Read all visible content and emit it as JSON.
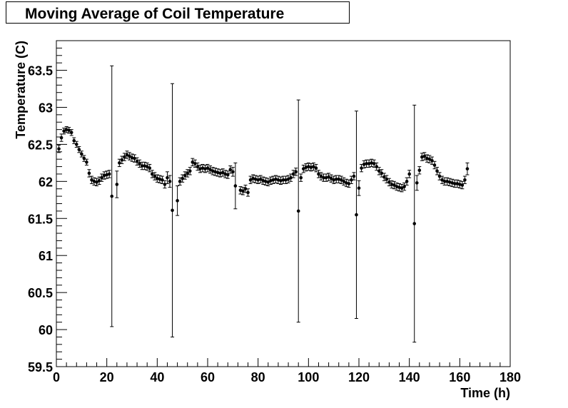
{
  "chart_data": {
    "type": "scatter",
    "title": "Moving Average of Coil Temperature",
    "xlabel": "Time (h)",
    "ylabel": "Temperature (C)",
    "xlim": [
      0,
      180
    ],
    "ylim": [
      59.5,
      63.9
    ],
    "x_ticks": [
      "0",
      "20",
      "40",
      "60",
      "80",
      "100",
      "120",
      "140",
      "160",
      "180"
    ],
    "y_ticks": [
      "59.5",
      "60",
      "60.5",
      "61",
      "61.5",
      "62",
      "62.5",
      "63",
      "63.5"
    ],
    "grid": false,
    "legend": "none",
    "marker_color": "#000000",
    "points": [
      [
        1,
        62.44,
        0.05
      ],
      [
        2,
        62.59,
        0.05
      ],
      [
        3,
        62.68,
        0.04
      ],
      [
        4,
        62.7,
        0.04
      ],
      [
        5,
        62.69,
        0.04
      ],
      [
        6,
        62.66,
        0.04
      ],
      [
        7,
        62.55,
        0.04
      ],
      [
        8,
        62.5,
        0.04
      ],
      [
        9,
        62.43,
        0.04
      ],
      [
        10,
        62.37,
        0.04
      ],
      [
        11,
        62.31,
        0.04
      ],
      [
        12,
        62.26,
        0.04
      ],
      [
        13,
        62.11,
        0.05
      ],
      [
        14,
        62.02,
        0.05
      ],
      [
        15,
        62.0,
        0.05
      ],
      [
        16,
        61.99,
        0.05
      ],
      [
        17,
        62.01,
        0.05
      ],
      [
        18,
        62.05,
        0.05
      ],
      [
        19,
        62.08,
        0.05
      ],
      [
        20,
        62.09,
        0.05
      ],
      [
        21,
        62.1,
        0.05
      ],
      [
        22,
        61.8,
        1.76
      ],
      [
        24,
        61.96,
        0.18
      ],
      [
        25,
        62.25,
        0.05
      ],
      [
        26,
        62.29,
        0.05
      ],
      [
        27,
        62.33,
        0.05
      ],
      [
        28,
        62.36,
        0.05
      ],
      [
        29,
        62.34,
        0.05
      ],
      [
        30,
        62.32,
        0.05
      ],
      [
        31,
        62.31,
        0.05
      ],
      [
        32,
        62.27,
        0.05
      ],
      [
        33,
        62.24,
        0.05
      ],
      [
        34,
        62.21,
        0.05
      ],
      [
        35,
        62.21,
        0.05
      ],
      [
        36,
        62.2,
        0.05
      ],
      [
        37,
        62.18,
        0.05
      ],
      [
        38,
        62.1,
        0.05
      ],
      [
        39,
        62.07,
        0.05
      ],
      [
        40,
        62.04,
        0.05
      ],
      [
        41,
        62.03,
        0.05
      ],
      [
        42,
        62.02,
        0.05
      ],
      [
        43,
        61.96,
        0.05
      ],
      [
        44,
        62.05,
        0.08
      ],
      [
        45,
        62.0,
        0.08
      ],
      [
        46,
        61.61,
        1.71
      ],
      [
        48,
        61.74,
        0.2
      ],
      [
        49,
        62.0,
        0.05
      ],
      [
        50,
        62.04,
        0.05
      ],
      [
        51,
        62.08,
        0.05
      ],
      [
        52,
        62.11,
        0.05
      ],
      [
        53,
        62.14,
        0.05
      ],
      [
        54,
        62.26,
        0.05
      ],
      [
        55,
        62.24,
        0.05
      ],
      [
        56,
        62.2,
        0.05
      ],
      [
        57,
        62.17,
        0.05
      ],
      [
        58,
        62.18,
        0.05
      ],
      [
        59,
        62.17,
        0.05
      ],
      [
        60,
        62.18,
        0.05
      ],
      [
        61,
        62.16,
        0.05
      ],
      [
        62,
        62.14,
        0.05
      ],
      [
        63,
        62.13,
        0.05
      ],
      [
        64,
        62.12,
        0.05
      ],
      [
        65,
        62.11,
        0.05
      ],
      [
        66,
        62.12,
        0.05
      ],
      [
        67,
        62.1,
        0.05
      ],
      [
        68,
        62.09,
        0.05
      ],
      [
        69,
        62.16,
        0.05
      ],
      [
        70,
        62.13,
        0.06
      ],
      [
        71,
        61.94,
        0.31
      ],
      [
        73,
        61.88,
        0.05
      ],
      [
        74,
        61.87,
        0.05
      ],
      [
        75,
        61.9,
        0.05
      ],
      [
        76,
        61.85,
        0.05
      ],
      [
        77,
        62.02,
        0.05
      ],
      [
        78,
        62.04,
        0.05
      ],
      [
        79,
        62.03,
        0.05
      ],
      [
        80,
        62.02,
        0.05
      ],
      [
        81,
        62.03,
        0.05
      ],
      [
        82,
        62.01,
        0.05
      ],
      [
        83,
        62.0,
        0.05
      ],
      [
        84,
        61.99,
        0.05
      ],
      [
        85,
        62.01,
        0.05
      ],
      [
        86,
        62.02,
        0.05
      ],
      [
        87,
        62.03,
        0.05
      ],
      [
        88,
        62.02,
        0.05
      ],
      [
        89,
        62.01,
        0.05
      ],
      [
        90,
        62.02,
        0.05
      ],
      [
        91,
        62.02,
        0.05
      ],
      [
        92,
        62.03,
        0.05
      ],
      [
        93,
        62.05,
        0.05
      ],
      [
        94,
        62.1,
        0.05
      ],
      [
        95,
        62.13,
        0.05
      ],
      [
        96,
        61.6,
        1.5
      ],
      [
        97,
        62.05,
        0.05
      ],
      [
        98,
        62.17,
        0.05
      ],
      [
        99,
        62.19,
        0.05
      ],
      [
        100,
        62.2,
        0.05
      ],
      [
        101,
        62.19,
        0.05
      ],
      [
        102,
        62.2,
        0.05
      ],
      [
        103,
        62.18,
        0.05
      ],
      [
        104,
        62.1,
        0.05
      ],
      [
        105,
        62.07,
        0.05
      ],
      [
        106,
        62.05,
        0.05
      ],
      [
        107,
        62.05,
        0.05
      ],
      [
        108,
        62.06,
        0.05
      ],
      [
        109,
        62.04,
        0.05
      ],
      [
        110,
        62.02,
        0.05
      ],
      [
        111,
        62.03,
        0.05
      ],
      [
        112,
        62.03,
        0.05
      ],
      [
        113,
        62.02,
        0.05
      ],
      [
        114,
        62.0,
        0.05
      ],
      [
        115,
        61.98,
        0.05
      ],
      [
        116,
        61.97,
        0.05
      ],
      [
        117,
        62.02,
        0.05
      ],
      [
        118,
        62.07,
        0.05
      ],
      [
        119,
        61.55,
        1.4
      ],
      [
        120,
        61.91,
        0.1
      ],
      [
        121,
        62.18,
        0.05
      ],
      [
        122,
        62.23,
        0.05
      ],
      [
        123,
        62.24,
        0.05
      ],
      [
        124,
        62.24,
        0.05
      ],
      [
        125,
        62.25,
        0.05
      ],
      [
        126,
        62.24,
        0.05
      ],
      [
        127,
        62.2,
        0.05
      ],
      [
        128,
        62.14,
        0.05
      ],
      [
        129,
        62.11,
        0.05
      ],
      [
        130,
        62.06,
        0.05
      ],
      [
        131,
        62.03,
        0.05
      ],
      [
        132,
        61.99,
        0.05
      ],
      [
        133,
        61.96,
        0.05
      ],
      [
        134,
        61.95,
        0.05
      ],
      [
        135,
        61.93,
        0.05
      ],
      [
        136,
        61.92,
        0.05
      ],
      [
        137,
        61.91,
        0.05
      ],
      [
        138,
        61.93,
        0.05
      ],
      [
        139,
        62.0,
        0.05
      ],
      [
        140,
        62.1,
        0.05
      ],
      [
        142,
        61.43,
        1.6
      ],
      [
        143,
        61.98,
        0.1
      ],
      [
        144,
        62.15,
        0.05
      ],
      [
        145,
        62.33,
        0.05
      ],
      [
        146,
        62.34,
        0.05
      ],
      [
        147,
        62.31,
        0.05
      ],
      [
        148,
        62.3,
        0.05
      ],
      [
        149,
        62.28,
        0.05
      ],
      [
        150,
        62.22,
        0.05
      ],
      [
        151,
        62.14,
        0.05
      ],
      [
        152,
        62.07,
        0.05
      ],
      [
        153,
        62.02,
        0.05
      ],
      [
        154,
        62.0,
        0.05
      ],
      [
        155,
        62.0,
        0.05
      ],
      [
        156,
        61.99,
        0.05
      ],
      [
        157,
        61.98,
        0.05
      ],
      [
        158,
        61.97,
        0.05
      ],
      [
        159,
        61.97,
        0.05
      ],
      [
        160,
        61.96,
        0.05
      ],
      [
        161,
        61.95,
        0.05
      ],
      [
        162,
        62.02,
        0.05
      ],
      [
        163,
        62.17,
        0.08
      ]
    ]
  }
}
